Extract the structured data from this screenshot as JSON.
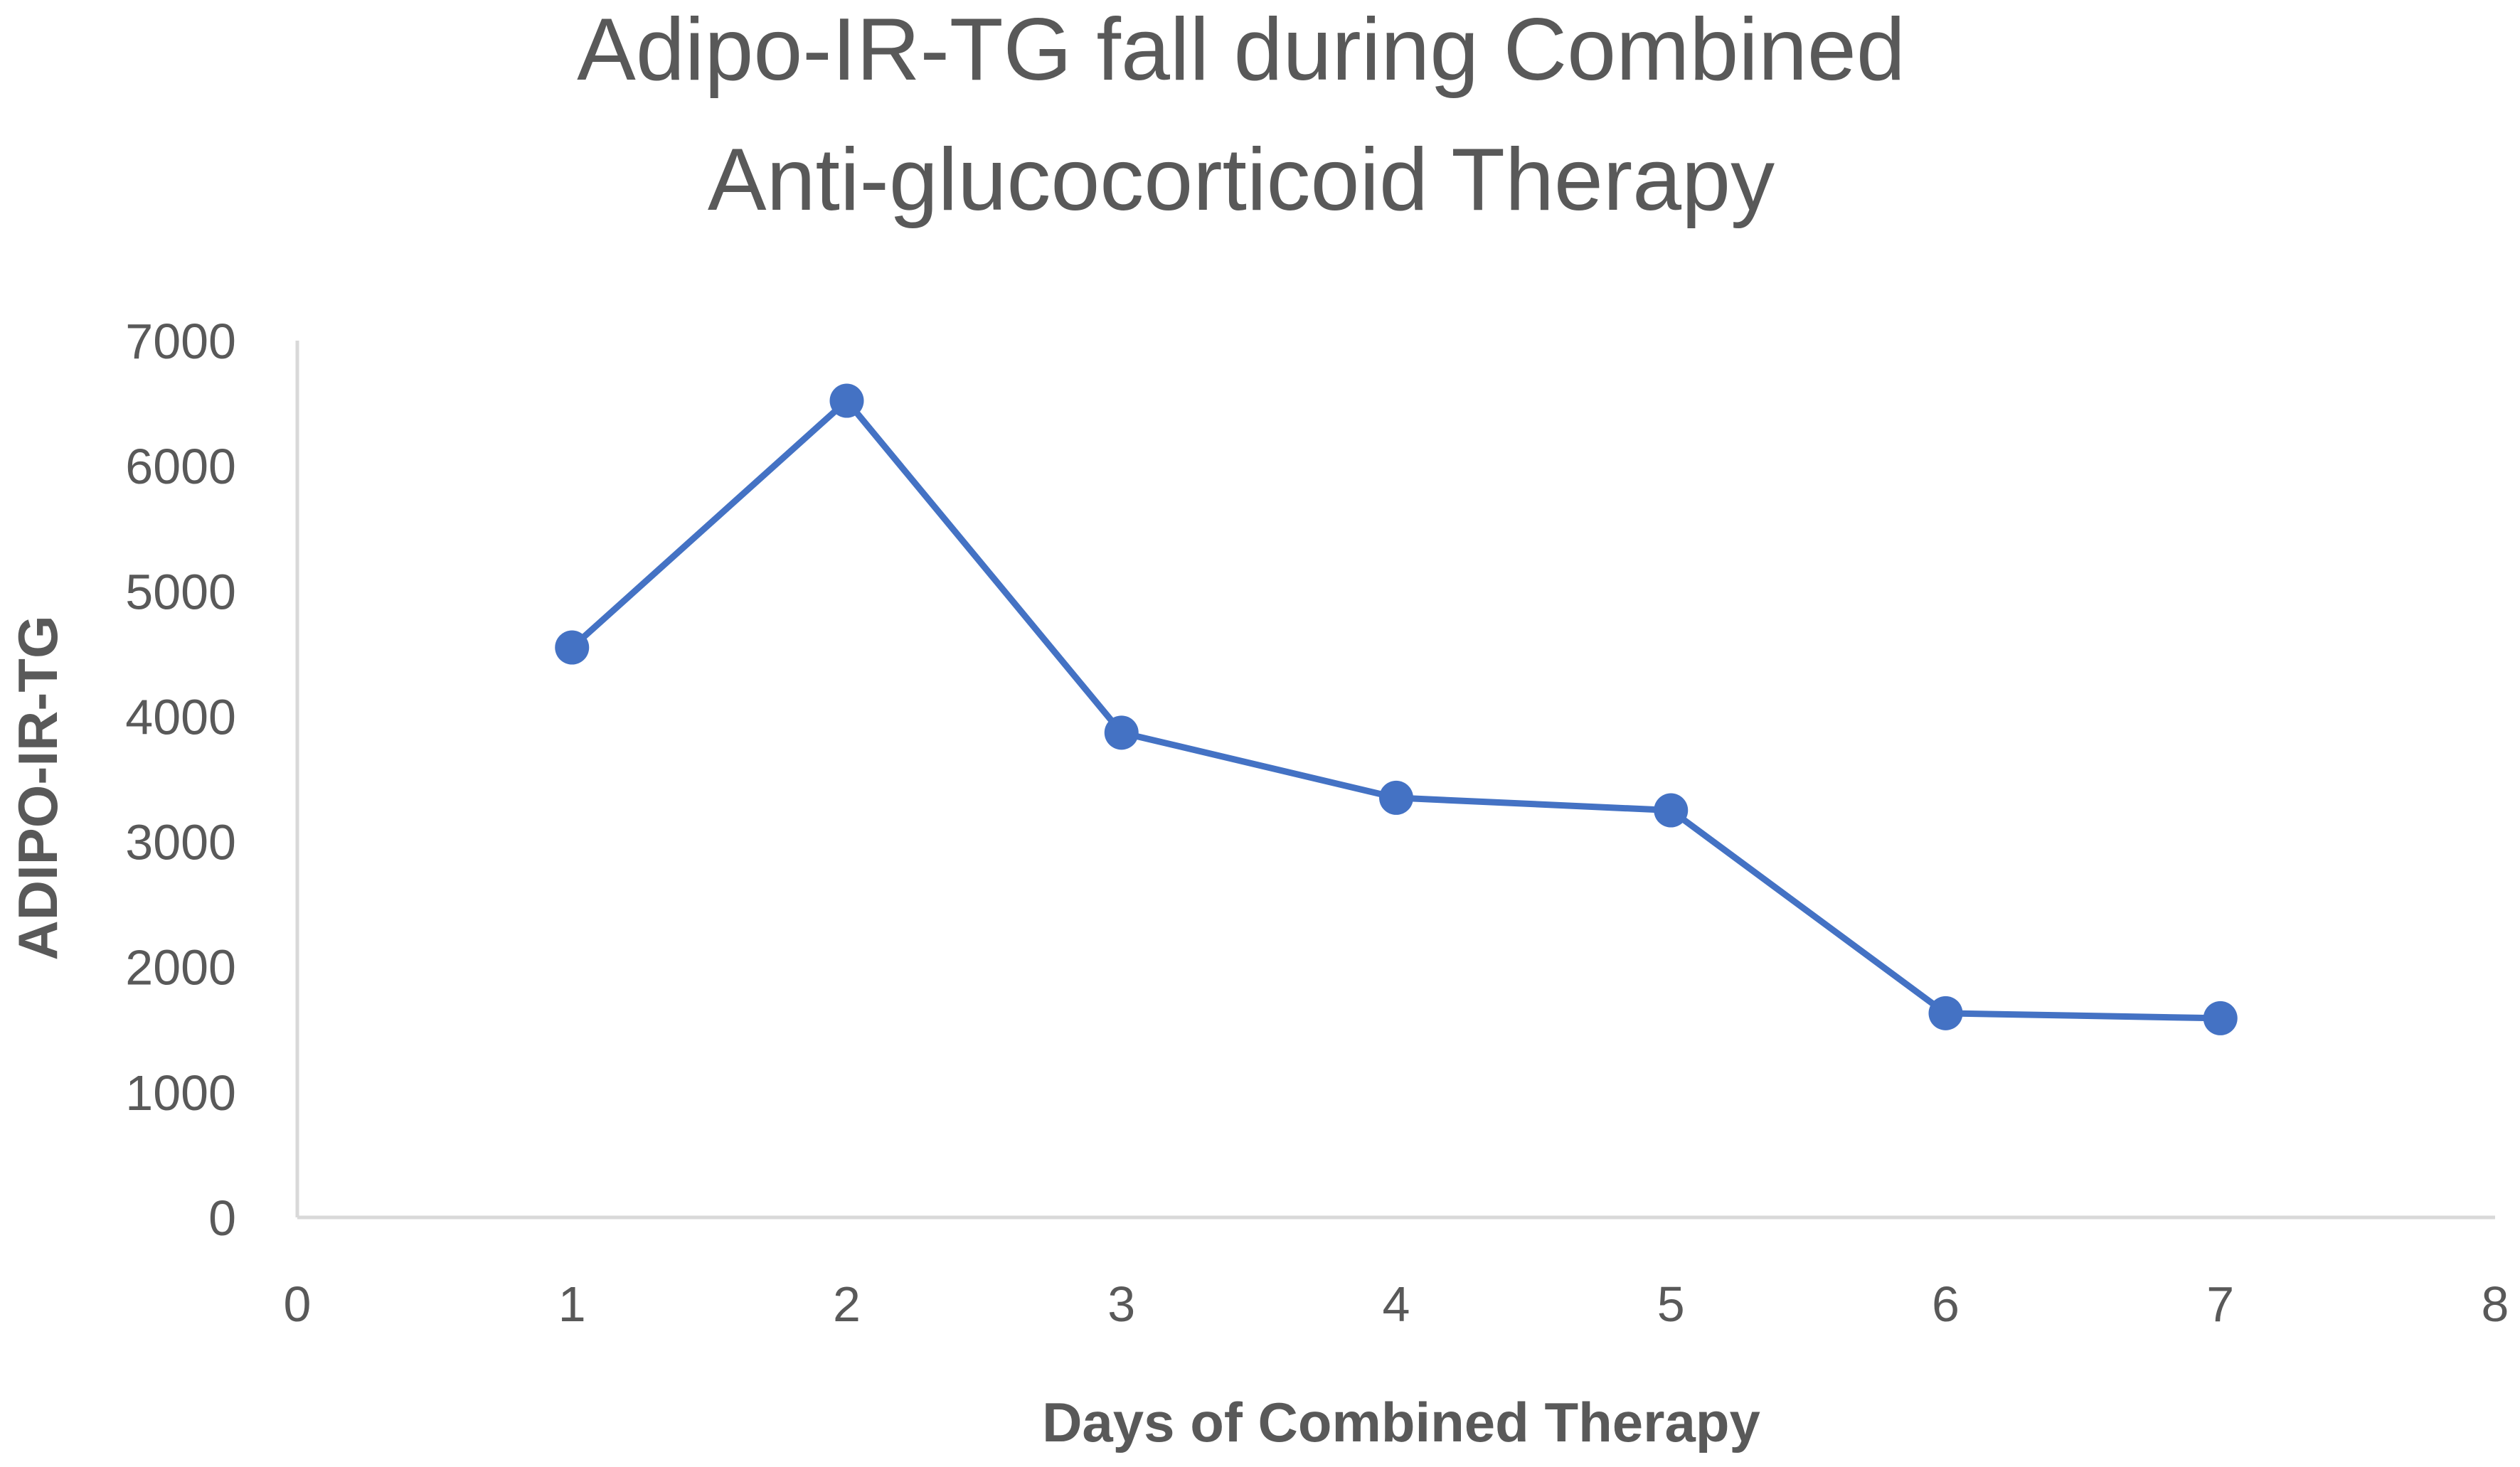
{
  "chart_data": {
    "type": "scatter",
    "title_lines": [
      "Adipo-IR-TG fall during Combined",
      "Anti-glucocorticoid Therapy"
    ],
    "xlabel": "Days  of Combined Therapy",
    "ylabel": "ADIPO-IR-TG",
    "xlim": [
      0,
      8
    ],
    "ylim": [
      0,
      7000
    ],
    "x_ticks": [
      0,
      1,
      2,
      3,
      4,
      5,
      6,
      7,
      8
    ],
    "y_ticks": [
      0,
      1000,
      2000,
      3000,
      4000,
      5000,
      6000,
      7000
    ],
    "grid": false,
    "legend": "none",
    "series": [
      {
        "color": "#4472C4",
        "marker": "circle",
        "line": "straight",
        "points": [
          {
            "x": 1,
            "y": 4550
          },
          {
            "x": 2,
            "y": 6520
          },
          {
            "x": 3,
            "y": 3870
          },
          {
            "x": 4,
            "y": 3350
          },
          {
            "x": 5,
            "y": 3250
          },
          {
            "x": 6,
            "y": 1630
          },
          {
            "x": 7,
            "y": 1590
          }
        ]
      }
    ]
  }
}
